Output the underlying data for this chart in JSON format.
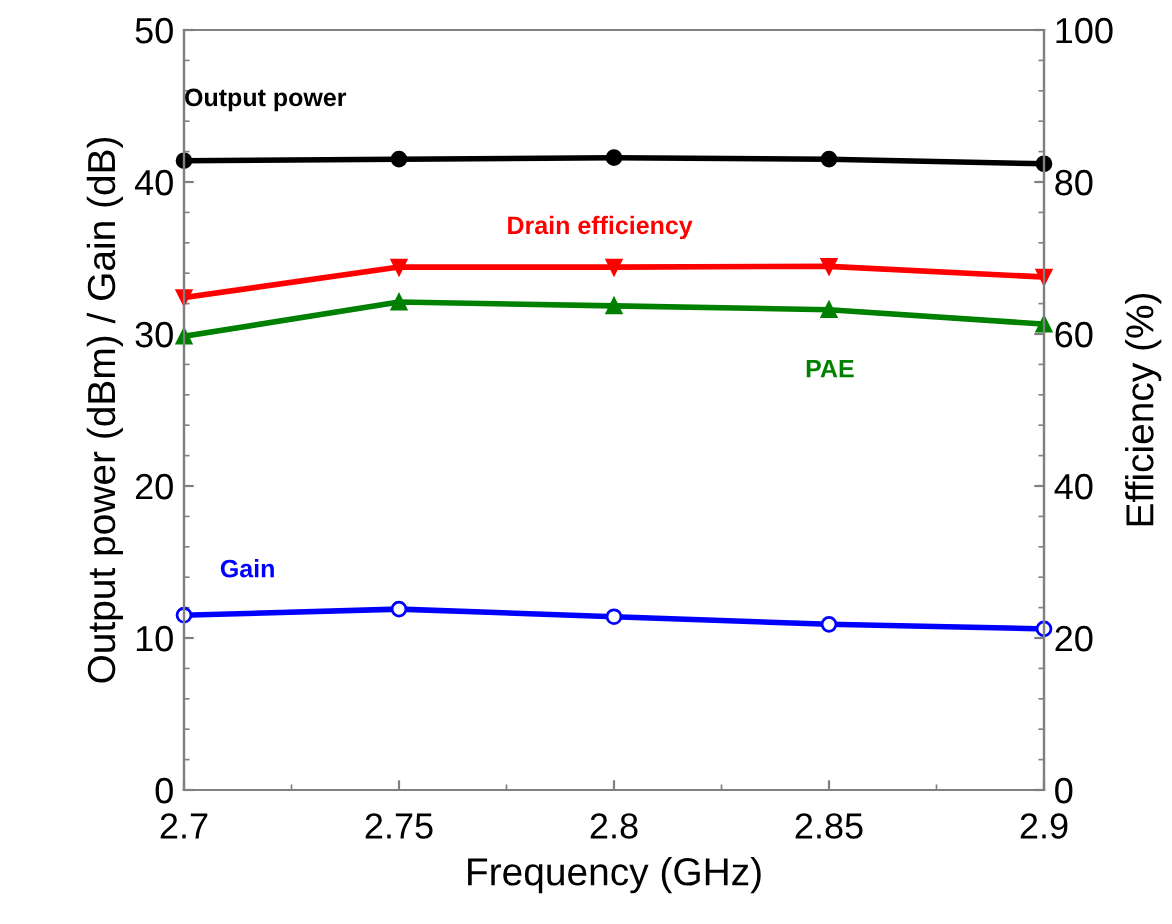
{
  "chart_data": {
    "type": "line",
    "xlabel": "Frequency (GHz)",
    "ylabel": "Output power (dBm) / Gain (dB)",
    "y2label": "Efficiency (%)",
    "x": [
      2.7,
      2.75,
      2.8,
      2.85,
      2.9
    ],
    "series": [
      {
        "name": "Output power",
        "color": "#000000",
        "marker": "circle",
        "values": [
          41.4,
          41.5,
          41.6,
          41.5,
          41.2
        ]
      },
      {
        "name": "Drain efficiency",
        "color": "#ff0000",
        "marker": "triangle_down",
        "axis": "y2",
        "values": [
          64.8,
          68.8,
          68.8,
          68.9,
          67.5
        ]
      },
      {
        "name": "PAE",
        "color": "#008000",
        "marker": "triangle",
        "axis": "y2",
        "values": [
          59.7,
          64.2,
          63.7,
          63.2,
          61.3
        ]
      },
      {
        "name": "Gain",
        "color": "#0000ff",
        "marker": "open circle",
        "values": [
          11.5,
          11.9,
          11.4,
          10.9,
          10.6
        ]
      }
    ],
    "xlim": [
      2.7,
      2.9
    ],
    "xticks": [
      2.7,
      2.75,
      2.8,
      2.85,
      2.9
    ],
    "ylim": [
      0,
      50
    ],
    "yticks": [
      0,
      10,
      20,
      30,
      40,
      50
    ],
    "y2lim": [
      0,
      100
    ],
    "y2ticks": [
      0,
      20,
      40,
      60,
      80,
      100
    ],
    "grid": false,
    "legend": false
  }
}
